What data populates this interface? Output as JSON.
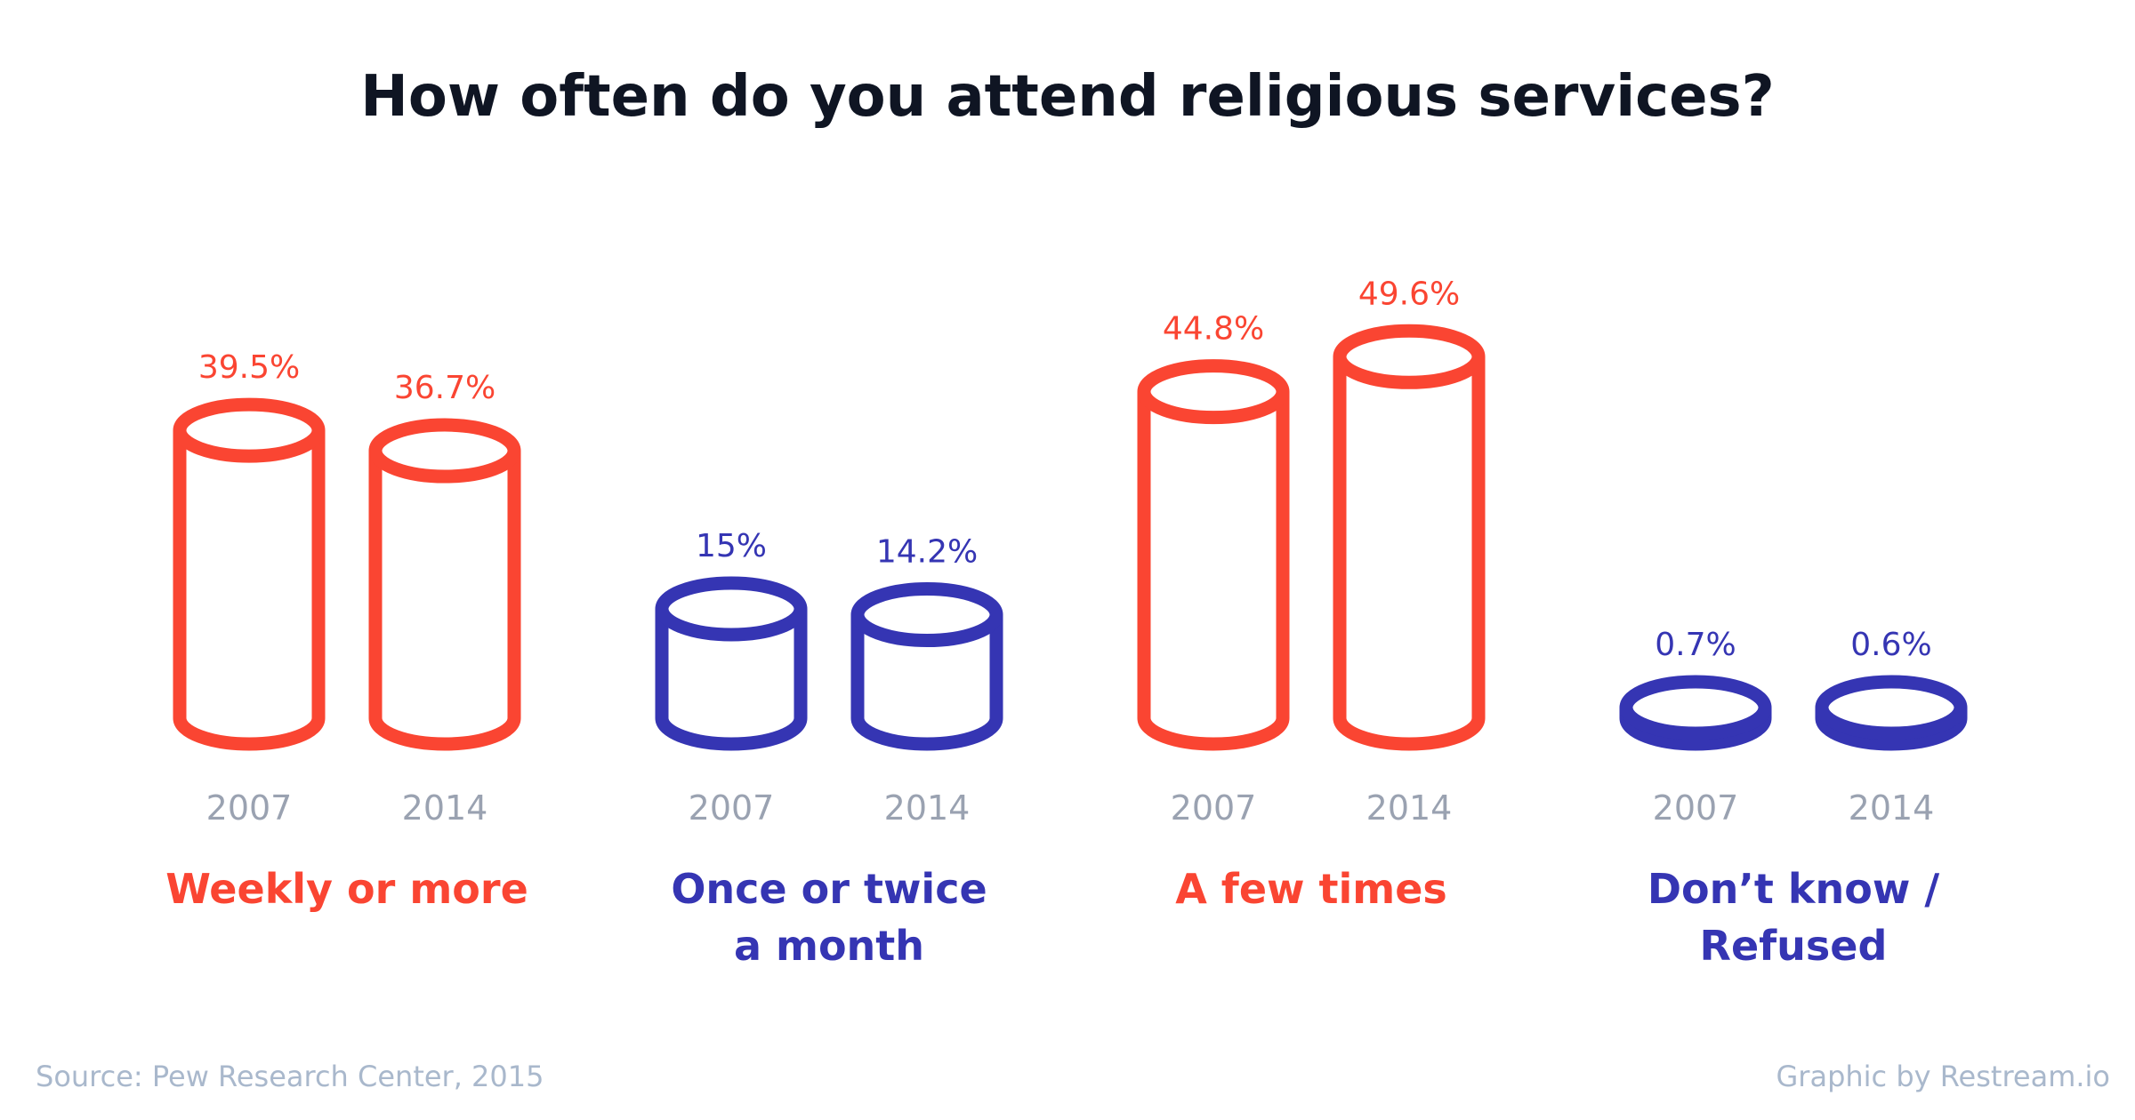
{
  "colors": {
    "red": "#fa4532",
    "blue": "#3535b3",
    "title": "#0f1523",
    "year": "#9aa2b1",
    "footer": "#a9b8cc"
  },
  "footer": {
    "source": "Source: Pew Research Center, 2015",
    "credit": "Graphic by Restream.io"
  },
  "chart_data": {
    "type": "bar",
    "title": "How often do you attend religious services?",
    "series": [
      {
        "name": "2007",
        "values": [
          39.5,
          15,
          44.8,
          0.7
        ]
      },
      {
        "name": "2014",
        "values": [
          36.7,
          14.2,
          49.6,
          0.6
        ]
      }
    ],
    "categories": [
      "Weekly or more",
      "Once or twice a month",
      "A few times",
      "Don’t know / Refused"
    ],
    "category_lines": [
      [
        "Weekly or more"
      ],
      [
        "Once or twice",
        "a month"
      ],
      [
        "A few times"
      ],
      [
        "Don’t know /",
        "Refused"
      ]
    ],
    "category_colors": [
      "red",
      "blue",
      "red",
      "blue"
    ],
    "value_labels": [
      [
        "39.5%",
        "36.7%"
      ],
      [
        "15%",
        "14.2%"
      ],
      [
        "44.8%",
        "49.6%"
      ],
      [
        "0.7%",
        "0.6%"
      ]
    ],
    "unit": "%",
    "grid": false,
    "legend": "none"
  }
}
